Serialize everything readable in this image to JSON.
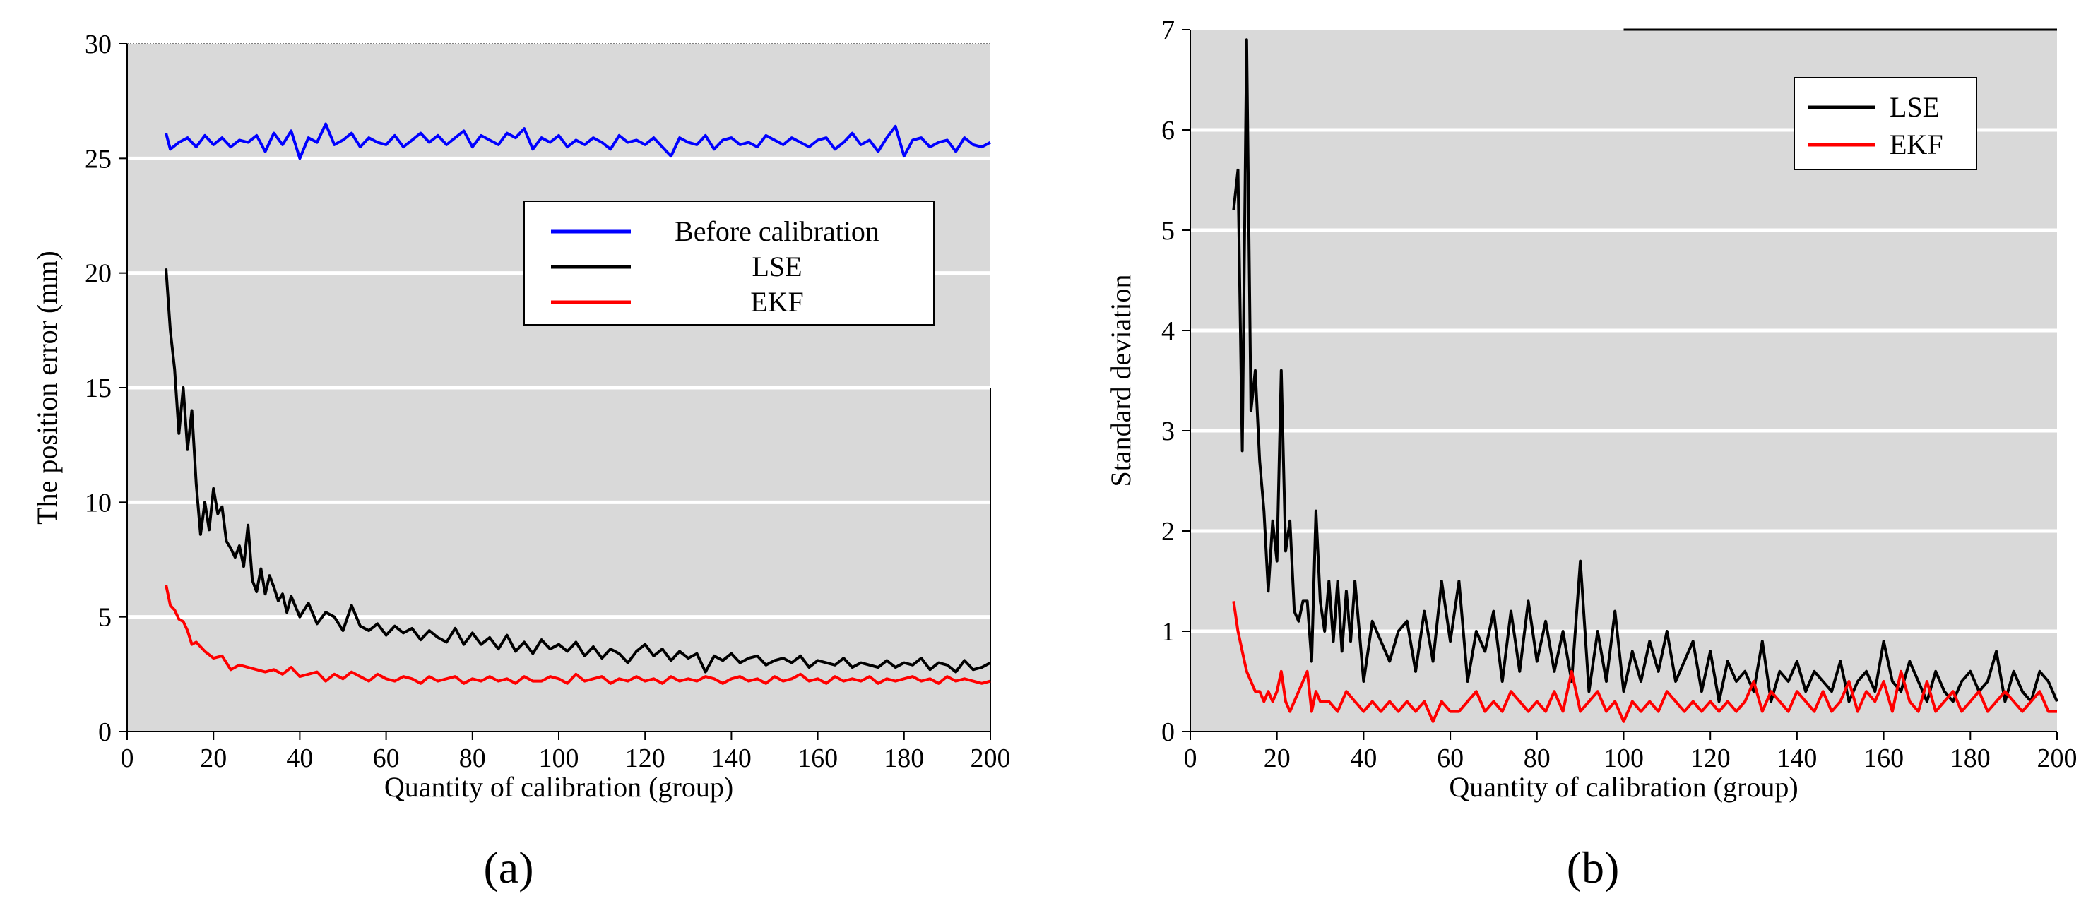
{
  "chart_data": [
    {
      "type": "line",
      "panel_label": "(a)",
      "title": "",
      "xlabel": "Quantity of calibration (group)",
      "ylabel": "The position error (mm)",
      "xlim": [
        0,
        200
      ],
      "ylim": [
        0,
        30
      ],
      "xticks": [
        0,
        20,
        40,
        60,
        80,
        100,
        120,
        140,
        160,
        180,
        200
      ],
      "yticks": [
        0,
        5,
        10,
        15,
        20,
        25,
        30
      ],
      "grid": "horizontal",
      "legend_position": "center-right",
      "series": [
        {
          "name": "Before calibration",
          "color": "#0000ff",
          "x": [
            9,
            10,
            12,
            14,
            16,
            18,
            20,
            22,
            24,
            26,
            28,
            30,
            32,
            34,
            36,
            38,
            40,
            42,
            44,
            46,
            48,
            50,
            52,
            54,
            56,
            58,
            60,
            62,
            64,
            66,
            68,
            70,
            72,
            74,
            76,
            78,
            80,
            82,
            84,
            86,
            88,
            90,
            92,
            94,
            96,
            98,
            100,
            102,
            104,
            106,
            108,
            110,
            112,
            114,
            116,
            118,
            120,
            122,
            124,
            126,
            128,
            130,
            132,
            134,
            136,
            138,
            140,
            142,
            144,
            146,
            148,
            150,
            152,
            154,
            156,
            158,
            160,
            162,
            164,
            166,
            168,
            170,
            172,
            174,
            176,
            178,
            180,
            182,
            184,
            186,
            188,
            190,
            192,
            194,
            196,
            198,
            200
          ],
          "values": [
            26.1,
            25.4,
            25.7,
            25.9,
            25.5,
            26.0,
            25.6,
            25.9,
            25.5,
            25.8,
            25.7,
            26.0,
            25.3,
            26.1,
            25.6,
            26.2,
            25.0,
            25.9,
            25.7,
            26.5,
            25.6,
            25.8,
            26.1,
            25.5,
            25.9,
            25.7,
            25.6,
            26.0,
            25.5,
            25.8,
            26.1,
            25.7,
            26.0,
            25.6,
            25.9,
            26.2,
            25.5,
            26.0,
            25.8,
            25.6,
            26.1,
            25.9,
            26.3,
            25.4,
            25.9,
            25.7,
            26.0,
            25.5,
            25.8,
            25.6,
            25.9,
            25.7,
            25.4,
            26.0,
            25.7,
            25.8,
            25.6,
            25.9,
            25.5,
            25.1,
            25.9,
            25.7,
            25.6,
            26.0,
            25.4,
            25.8,
            25.9,
            25.6,
            25.7,
            25.5,
            26.0,
            25.8,
            25.6,
            25.9,
            25.7,
            25.5,
            25.8,
            25.9,
            25.4,
            25.7,
            26.1,
            25.6,
            25.8,
            25.3,
            25.9,
            26.4,
            25.1,
            25.8,
            25.9,
            25.5,
            25.7,
            25.8,
            25.3,
            25.9,
            25.6,
            25.5,
            25.7
          ]
        },
        {
          "name": "LSE",
          "color": "#000000",
          "x": [
            9,
            10,
            11,
            12,
            13,
            14,
            15,
            16,
            17,
            18,
            19,
            20,
            21,
            22,
            23,
            24,
            25,
            26,
            27,
            28,
            29,
            30,
            31,
            32,
            33,
            34,
            35,
            36,
            37,
            38,
            40,
            42,
            44,
            46,
            48,
            50,
            52,
            54,
            56,
            58,
            60,
            62,
            64,
            66,
            68,
            70,
            72,
            74,
            76,
            78,
            80,
            82,
            84,
            86,
            88,
            90,
            92,
            94,
            96,
            98,
            100,
            102,
            104,
            106,
            108,
            110,
            112,
            114,
            116,
            118,
            120,
            122,
            124,
            126,
            128,
            130,
            132,
            134,
            136,
            138,
            140,
            142,
            144,
            146,
            148,
            150,
            152,
            154,
            156,
            158,
            160,
            162,
            164,
            166,
            168,
            170,
            172,
            174,
            176,
            178,
            180,
            182,
            184,
            186,
            188,
            190,
            192,
            194,
            196,
            198,
            200
          ],
          "values": [
            20.2,
            17.5,
            15.8,
            13.0,
            15.0,
            12.3,
            14.0,
            10.8,
            8.6,
            10.0,
            8.8,
            10.6,
            9.5,
            9.8,
            8.3,
            8.0,
            7.6,
            8.1,
            7.2,
            9.0,
            6.6,
            6.1,
            7.1,
            6.0,
            6.8,
            6.3,
            5.7,
            6.0,
            5.2,
            5.9,
            5.0,
            5.6,
            4.7,
            5.2,
            5.0,
            4.4,
            5.5,
            4.6,
            4.4,
            4.7,
            4.2,
            4.6,
            4.3,
            4.5,
            4.0,
            4.4,
            4.1,
            3.9,
            4.5,
            3.8,
            4.3,
            3.8,
            4.1,
            3.6,
            4.2,
            3.5,
            3.9,
            3.4,
            4.0,
            3.6,
            3.8,
            3.5,
            3.9,
            3.3,
            3.7,
            3.2,
            3.6,
            3.4,
            3.0,
            3.5,
            3.8,
            3.3,
            3.6,
            3.1,
            3.5,
            3.2,
            3.4,
            2.6,
            3.3,
            3.1,
            3.4,
            3.0,
            3.2,
            3.3,
            2.9,
            3.1,
            3.2,
            3.0,
            3.3,
            2.8,
            3.1,
            3.0,
            2.9,
            3.2,
            2.8,
            3.0,
            2.9,
            2.8,
            3.1,
            2.8,
            3.0,
            2.9,
            3.2,
            2.7,
            3.0,
            2.9,
            2.6,
            3.1,
            2.7,
            2.8,
            3.0
          ]
        },
        {
          "name": "EKF",
          "color": "#ff0000",
          "x": [
            9,
            10,
            11,
            12,
            13,
            14,
            15,
            16,
            17,
            18,
            20,
            22,
            24,
            26,
            28,
            30,
            32,
            34,
            36,
            38,
            40,
            42,
            44,
            46,
            48,
            50,
            52,
            54,
            56,
            58,
            60,
            62,
            64,
            66,
            68,
            70,
            72,
            74,
            76,
            78,
            80,
            82,
            84,
            86,
            88,
            90,
            92,
            94,
            96,
            98,
            100,
            102,
            104,
            106,
            108,
            110,
            112,
            114,
            116,
            118,
            120,
            122,
            124,
            126,
            128,
            130,
            132,
            134,
            136,
            138,
            140,
            142,
            144,
            146,
            148,
            150,
            152,
            154,
            156,
            158,
            160,
            162,
            164,
            166,
            168,
            170,
            172,
            174,
            176,
            178,
            180,
            182,
            184,
            186,
            188,
            190,
            192,
            194,
            196,
            198,
            200
          ],
          "values": [
            6.4,
            5.5,
            5.3,
            4.9,
            4.8,
            4.4,
            3.8,
            3.9,
            3.7,
            3.5,
            3.2,
            3.3,
            2.7,
            2.9,
            2.8,
            2.7,
            2.6,
            2.7,
            2.5,
            2.8,
            2.4,
            2.5,
            2.6,
            2.2,
            2.5,
            2.3,
            2.6,
            2.4,
            2.2,
            2.5,
            2.3,
            2.2,
            2.4,
            2.3,
            2.1,
            2.4,
            2.2,
            2.3,
            2.4,
            2.1,
            2.3,
            2.2,
            2.4,
            2.2,
            2.3,
            2.1,
            2.4,
            2.2,
            2.2,
            2.4,
            2.3,
            2.1,
            2.5,
            2.2,
            2.3,
            2.4,
            2.1,
            2.3,
            2.2,
            2.4,
            2.2,
            2.3,
            2.1,
            2.4,
            2.2,
            2.3,
            2.2,
            2.4,
            2.3,
            2.1,
            2.3,
            2.4,
            2.2,
            2.3,
            2.1,
            2.4,
            2.2,
            2.3,
            2.5,
            2.2,
            2.3,
            2.1,
            2.4,
            2.2,
            2.3,
            2.2,
            2.4,
            2.1,
            2.3,
            2.2,
            2.3,
            2.4,
            2.2,
            2.3,
            2.1,
            2.4,
            2.2,
            2.3,
            2.2,
            2.1,
            2.2
          ]
        }
      ]
    },
    {
      "type": "line",
      "panel_label": "(b)",
      "title": "",
      "xlabel": "Quantity of calibration (group)",
      "ylabel": "Standard deviation",
      "xlim": [
        0,
        200
      ],
      "ylim": [
        0,
        7
      ],
      "xticks": [
        0,
        20,
        40,
        60,
        80,
        100,
        120,
        140,
        160,
        180,
        200
      ],
      "yticks": [
        0,
        1,
        2,
        3,
        4,
        5,
        6,
        7
      ],
      "grid": "horizontal",
      "legend_position": "top-right",
      "series": [
        {
          "name": "LSE",
          "color": "#000000",
          "x": [
            10,
            11,
            12,
            13,
            14,
            15,
            16,
            17,
            18,
            19,
            20,
            21,
            22,
            23,
            24,
            25,
            26,
            27,
            28,
            29,
            30,
            31,
            32,
            33,
            34,
            35,
            36,
            37,
            38,
            40,
            42,
            44,
            46,
            48,
            50,
            52,
            54,
            56,
            58,
            60,
            62,
            64,
            66,
            68,
            70,
            72,
            74,
            76,
            78,
            80,
            82,
            84,
            86,
            88,
            90,
            92,
            94,
            96,
            98,
            100,
            102,
            104,
            106,
            108,
            110,
            112,
            114,
            116,
            118,
            120,
            122,
            124,
            126,
            128,
            130,
            132,
            134,
            136,
            138,
            140,
            142,
            144,
            146,
            148,
            150,
            152,
            154,
            156,
            158,
            160,
            162,
            164,
            166,
            168,
            170,
            172,
            174,
            176,
            178,
            180,
            182,
            184,
            186,
            188,
            190,
            192,
            194,
            196,
            198,
            200
          ],
          "values": [
            5.2,
            5.6,
            2.8,
            6.9,
            3.2,
            3.6,
            2.7,
            2.2,
            1.4,
            2.1,
            1.7,
            3.6,
            1.8,
            2.1,
            1.2,
            1.1,
            1.3,
            1.3,
            0.7,
            2.2,
            1.3,
            1.0,
            1.5,
            0.9,
            1.5,
            0.8,
            1.4,
            0.9,
            1.5,
            0.5,
            1.1,
            0.9,
            0.7,
            1.0,
            1.1,
            0.6,
            1.2,
            0.7,
            1.5,
            0.9,
            1.5,
            0.5,
            1.0,
            0.8,
            1.2,
            0.5,
            1.2,
            0.6,
            1.3,
            0.7,
            1.1,
            0.6,
            1.0,
            0.5,
            1.7,
            0.4,
            1.0,
            0.5,
            1.2,
            0.4,
            0.8,
            0.5,
            0.9,
            0.6,
            1.0,
            0.5,
            0.7,
            0.9,
            0.4,
            0.8,
            0.3,
            0.7,
            0.5,
            0.6,
            0.4,
            0.9,
            0.3,
            0.6,
            0.5,
            0.7,
            0.4,
            0.6,
            0.5,
            0.4,
            0.7,
            0.3,
            0.5,
            0.6,
            0.4,
            0.9,
            0.5,
            0.4,
            0.7,
            0.5,
            0.3,
            0.6,
            0.4,
            0.3,
            0.5,
            0.6,
            0.4,
            0.5,
            0.8,
            0.3,
            0.6,
            0.4,
            0.3,
            0.6,
            0.5,
            0.3
          ]
        },
        {
          "name": "EKF",
          "color": "#ff0000",
          "x": [
            10,
            11,
            12,
            13,
            14,
            15,
            16,
            17,
            18,
            19,
            20,
            21,
            22,
            23,
            24,
            25,
            26,
            27,
            28,
            29,
            30,
            32,
            34,
            36,
            38,
            40,
            42,
            44,
            46,
            48,
            50,
            52,
            54,
            56,
            58,
            60,
            62,
            64,
            66,
            68,
            70,
            72,
            74,
            76,
            78,
            80,
            82,
            84,
            86,
            88,
            90,
            92,
            94,
            96,
            98,
            100,
            102,
            104,
            106,
            108,
            110,
            112,
            114,
            116,
            118,
            120,
            122,
            124,
            126,
            128,
            130,
            132,
            134,
            136,
            138,
            140,
            142,
            144,
            146,
            148,
            150,
            152,
            154,
            156,
            158,
            160,
            162,
            164,
            166,
            168,
            170,
            172,
            174,
            176,
            178,
            180,
            182,
            184,
            186,
            188,
            190,
            192,
            194,
            196,
            198,
            200
          ],
          "values": [
            1.3,
            1.0,
            0.8,
            0.6,
            0.5,
            0.4,
            0.4,
            0.3,
            0.4,
            0.3,
            0.4,
            0.6,
            0.3,
            0.2,
            0.3,
            0.4,
            0.5,
            0.6,
            0.2,
            0.4,
            0.3,
            0.3,
            0.2,
            0.4,
            0.3,
            0.2,
            0.3,
            0.2,
            0.3,
            0.2,
            0.3,
            0.2,
            0.3,
            0.1,
            0.3,
            0.2,
            0.2,
            0.3,
            0.4,
            0.2,
            0.3,
            0.2,
            0.4,
            0.3,
            0.2,
            0.3,
            0.2,
            0.4,
            0.2,
            0.6,
            0.2,
            0.3,
            0.4,
            0.2,
            0.3,
            0.1,
            0.3,
            0.2,
            0.3,
            0.2,
            0.4,
            0.3,
            0.2,
            0.3,
            0.2,
            0.3,
            0.2,
            0.3,
            0.2,
            0.3,
            0.5,
            0.2,
            0.4,
            0.3,
            0.2,
            0.4,
            0.3,
            0.2,
            0.4,
            0.2,
            0.3,
            0.5,
            0.2,
            0.4,
            0.3,
            0.5,
            0.2,
            0.6,
            0.3,
            0.2,
            0.5,
            0.2,
            0.3,
            0.4,
            0.2,
            0.3,
            0.4,
            0.2,
            0.3,
            0.4,
            0.3,
            0.2,
            0.3,
            0.4,
            0.2,
            0.2
          ]
        }
      ]
    }
  ]
}
